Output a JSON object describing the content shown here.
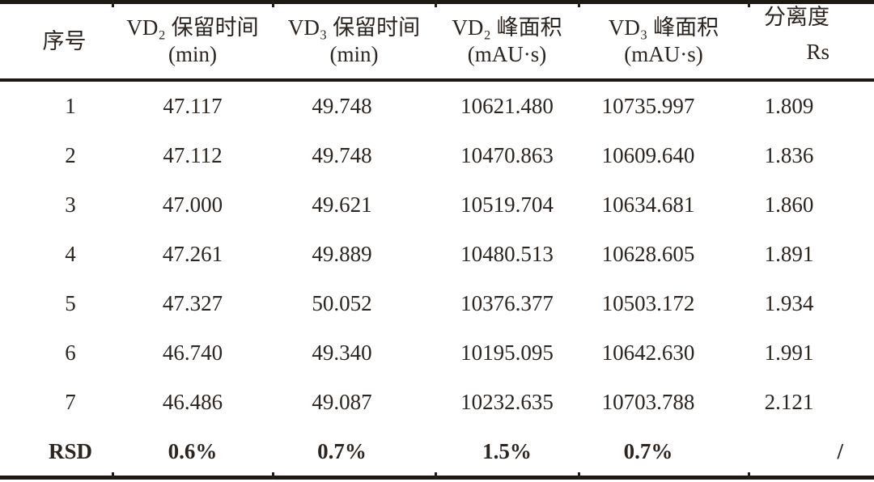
{
  "colors": {
    "background": "#ffffff",
    "ink": "#2b241f",
    "rule": "#1e1813"
  },
  "table": {
    "headers": [
      {
        "line1": "序号",
        "line2": ""
      },
      {
        "line1": "VD₂ 保留时间",
        "line2": "(min)"
      },
      {
        "line1": "VD₃ 保留时间",
        "line2": "(min)"
      },
      {
        "line1": "VD₂ 峰面积",
        "line2": "(mAU·s)"
      },
      {
        "line1": "VD₃ 峰面积",
        "line2": "(mAU·s)"
      },
      {
        "line1": "分离度",
        "line2": "Rs"
      }
    ],
    "rows": [
      [
        "1",
        "47.117",
        "49.748",
        "10621.480",
        "10735.997",
        "1.809"
      ],
      [
        "2",
        "47.112",
        "49.748",
        "10470.863",
        "10609.640",
        "1.836"
      ],
      [
        "3",
        "47.000",
        "49.621",
        "10519.704",
        "10634.681",
        "1.860"
      ],
      [
        "4",
        "47.261",
        "49.889",
        "10480.513",
        "10628.605",
        "1.891"
      ],
      [
        "5",
        "47.327",
        "50.052",
        "10376.377",
        "10503.172",
        "1.934"
      ],
      [
        "6",
        "46.740",
        "49.340",
        "10195.095",
        "10642.630",
        "1.991"
      ],
      [
        "7",
        "46.486",
        "49.087",
        "10232.635",
        "10703.788",
        "2.121"
      ]
    ],
    "summary_row": {
      "label": "RSD",
      "values": [
        "0.6%",
        "0.7%",
        "1.5%",
        "0.7%",
        "/"
      ]
    }
  },
  "chart_data": {
    "type": "table",
    "columns": [
      "序号",
      "VD₂ 保留时间 (min)",
      "VD₃ 保留时间 (min)",
      "VD₂ 峰面积 (mAU·s)",
      "VD₃ 峰面积 (mAU·s)",
      "分离度 Rs"
    ],
    "rows": [
      [
        "1",
        47.117,
        49.748,
        10621.48,
        10735.997,
        1.809
      ],
      [
        "2",
        47.112,
        49.748,
        10470.863,
        10609.64,
        1.836
      ],
      [
        "3",
        47.0,
        49.621,
        10519.704,
        10634.681,
        1.86
      ],
      [
        "4",
        47.261,
        49.889,
        10480.513,
        10628.605,
        1.891
      ],
      [
        "5",
        47.327,
        50.052,
        10376.377,
        10503.172,
        1.934
      ],
      [
        "6",
        46.74,
        49.34,
        10195.095,
        10642.63,
        1.991
      ],
      [
        "7",
        46.486,
        49.087,
        10232.635,
        10703.788,
        2.121
      ],
      [
        "RSD",
        "0.6%",
        "0.7%",
        "1.5%",
        "0.7%",
        "/"
      ]
    ]
  }
}
